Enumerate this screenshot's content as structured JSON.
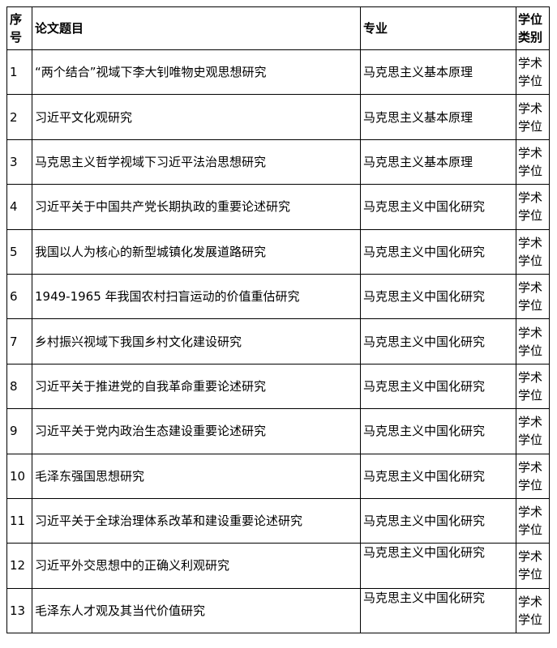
{
  "headers": {
    "index": "序号",
    "title": "论文题目",
    "major": "专业",
    "degree": "学位类别"
  },
  "rows": [
    {
      "index": "1",
      "title": "“两个结合”视域下李大钊唯物史观思想研究",
      "major": "马克思主义基本原理",
      "degree": "学术学位"
    },
    {
      "index": "2",
      "title": "习近平文化观研究",
      "major": "马克思主义基本原理",
      "degree": "学术学位"
    },
    {
      "index": "3",
      "title": "马克思主义哲学视域下习近平法治思想研究",
      "major": "马克思主义基本原理",
      "degree": "学术学位"
    },
    {
      "index": "4",
      "title": "习近平关于中国共产党长期执政的重要论述研究",
      "major": "马克思主义中国化研究",
      "degree": "学术学位"
    },
    {
      "index": "5",
      "title": "我国以人为核心的新型城镇化发展道路研究",
      "major": "马克思主义中国化研究",
      "degree": "学术学位"
    },
    {
      "index": "6",
      "title": "1949-1965 年我国农村扫盲运动的价值重估研究",
      "major": "马克思主义中国化研究",
      "degree": "学术学位"
    },
    {
      "index": "7",
      "title": "乡村振兴视域下我国乡村文化建设研究",
      "major": "马克思主义中国化研究",
      "degree": "学术学位"
    },
    {
      "index": "8",
      "title": "习近平关于推进党的自我革命重要论述研究",
      "major": "马克思主义中国化研究",
      "degree": "学术学位"
    },
    {
      "index": "9",
      "title": "习近平关于党内政治生态建设重要论述研究",
      "major": "马克思主义中国化研究",
      "degree": "学术学位"
    },
    {
      "index": "10",
      "title": "毛泽东强国思想研究",
      "major": "马克思主义中国化研究",
      "degree": "学术学位"
    },
    {
      "index": "11",
      "title": "习近平关于全球治理体系改革和建设重要论述研究",
      "major": "马克思主义中国化研究",
      "degree": "学术学位"
    },
    {
      "index": "12",
      "title": "习近平外交思想中的正确义利观研究",
      "major": "马克思主义中国化研究",
      "degree": "学术学位"
    },
    {
      "index": "13",
      "title": "毛泽东人才观及其当代价值研究",
      "major": "马克思主义中国化研究",
      "degree": "学术学位"
    }
  ]
}
